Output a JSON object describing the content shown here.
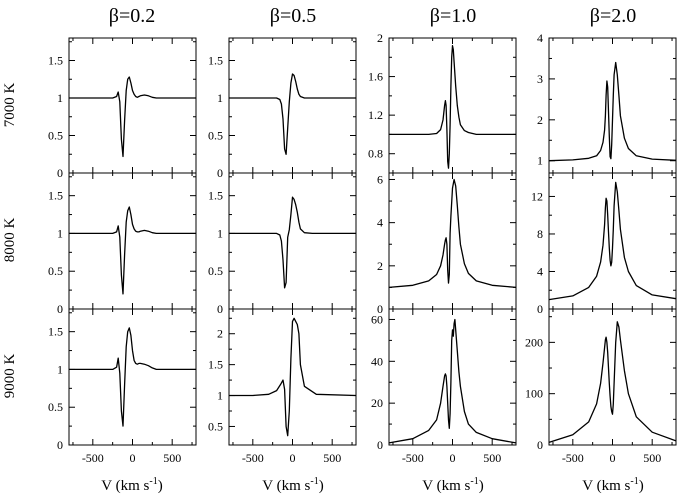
{
  "chart_data": {
    "type": "line",
    "title": "",
    "column_titles": [
      "β=0.2",
      "β=0.5",
      "β=1.0",
      "β=2.0"
    ],
    "row_labels": [
      "7000 K",
      "8000 K",
      "9000 K"
    ],
    "xlabel": {
      "main": "V (km s",
      "sup": "-1",
      "close": ")"
    },
    "xlim": [
      -800,
      800
    ],
    "xticks": [
      -500,
      0,
      500
    ],
    "ylabel": "",
    "grid": false,
    "legend": "none",
    "panels": [
      {
        "id": "7000K-b0.2",
        "ylim": [
          0,
          1.8
        ],
        "yticks": [
          0,
          0.5,
          1,
          1.5
        ],
        "x": [
          -800,
          -250,
          -200,
          -180,
          -160,
          -140,
          -120,
          -100,
          -80,
          -60,
          -40,
          -20,
          0,
          20,
          40,
          60,
          80,
          100,
          150,
          200,
          250,
          300,
          400,
          800
        ],
        "y": [
          1,
          1,
          1.02,
          1.08,
          0.95,
          0.45,
          0.22,
          0.7,
          1.1,
          1.25,
          1.28,
          1.2,
          1.1,
          1.05,
          1.02,
          1.01,
          1.02,
          1.03,
          1.04,
          1.03,
          1.01,
          1,
          1,
          1
        ]
      },
      {
        "id": "7000K-b0.5",
        "ylim": [
          0,
          1.8
        ],
        "yticks": [
          0,
          0.5,
          1,
          1.5
        ],
        "x": [
          -800,
          -200,
          -160,
          -140,
          -120,
          -100,
          -80,
          -60,
          -40,
          -20,
          0,
          20,
          40,
          60,
          80,
          100,
          150,
          250,
          800
        ],
        "y": [
          1,
          1,
          0.98,
          0.92,
          0.72,
          0.32,
          0.25,
          0.6,
          0.95,
          1.2,
          1.32,
          1.3,
          1.22,
          1.12,
          1.05,
          1.02,
          1,
          1,
          1
        ]
      },
      {
        "id": "7000K-b1.0",
        "ylim": [
          0.6,
          2.0
        ],
        "yticks": [
          0.8,
          1.2,
          1.6,
          2
        ],
        "x": [
          -800,
          -300,
          -200,
          -150,
          -120,
          -100,
          -90,
          -80,
          -70,
          -60,
          -50,
          -40,
          -30,
          -20,
          -10,
          0,
          10,
          20,
          40,
          60,
          80,
          100,
          150,
          200,
          300,
          800
        ],
        "y": [
          1,
          1,
          1.01,
          1.05,
          1.15,
          1.3,
          1.35,
          1.3,
          1.05,
          0.72,
          0.65,
          0.8,
          1.1,
          1.5,
          1.8,
          1.92,
          1.88,
          1.75,
          1.5,
          1.3,
          1.18,
          1.1,
          1.04,
          1.02,
          1,
          1
        ]
      },
      {
        "id": "7000K-b2.0",
        "ylim": [
          0.7,
          4.0
        ],
        "yticks": [
          1,
          2,
          3,
          4
        ],
        "x": [
          -800,
          -500,
          -300,
          -200,
          -150,
          -120,
          -100,
          -90,
          -80,
          -70,
          -60,
          -50,
          -40,
          -30,
          -20,
          -10,
          0,
          10,
          20,
          40,
          60,
          80,
          100,
          150,
          200,
          300,
          500,
          800
        ],
        "y": [
          1,
          1.02,
          1.06,
          1.12,
          1.25,
          1.45,
          1.75,
          2.1,
          2.6,
          2.95,
          2.8,
          2.2,
          1.6,
          1.1,
          1.05,
          1.4,
          2,
          2.6,
          3.1,
          3.4,
          3.1,
          2.6,
          2.1,
          1.55,
          1.3,
          1.12,
          1.04,
          1.01
        ]
      },
      {
        "id": "8000K-b0.2",
        "ylim": [
          0,
          1.8
        ],
        "yticks": [
          0,
          0.5,
          1,
          1.5
        ],
        "x": [
          -800,
          -250,
          -200,
          -180,
          -160,
          -140,
          -120,
          -100,
          -80,
          -60,
          -40,
          -20,
          0,
          20,
          40,
          60,
          80,
          100,
          150,
          200,
          250,
          300,
          400,
          800
        ],
        "y": [
          1,
          1,
          1.02,
          1.1,
          0.95,
          0.45,
          0.2,
          0.72,
          1.15,
          1.3,
          1.35,
          1.25,
          1.12,
          1.06,
          1.03,
          1.02,
          1.02,
          1.03,
          1.04,
          1.03,
          1.01,
          1,
          1,
          1
        ]
      },
      {
        "id": "8000K-b0.5",
        "ylim": [
          0,
          1.8
        ],
        "yticks": [
          0,
          0.5,
          1,
          1.5
        ],
        "x": [
          -800,
          -200,
          -160,
          -140,
          -120,
          -100,
          -80,
          -60,
          -40,
          -20,
          0,
          20,
          40,
          60,
          80,
          100,
          150,
          250,
          800
        ],
        "y": [
          1,
          1,
          0.98,
          0.9,
          0.65,
          0.28,
          0.35,
          0.95,
          1.05,
          1.25,
          1.48,
          1.45,
          1.38,
          1.28,
          1.15,
          1.06,
          1.01,
          1,
          1
        ]
      },
      {
        "id": "8000K-b1.0",
        "ylim": [
          0,
          6.3
        ],
        "yticks": [
          0,
          2,
          4,
          6
        ],
        "x": [
          -800,
          -500,
          -300,
          -200,
          -150,
          -120,
          -100,
          -90,
          -80,
          -70,
          -60,
          -50,
          -40,
          -30,
          -20,
          0,
          20,
          40,
          60,
          80,
          100,
          150,
          200,
          300,
          500,
          800
        ],
        "y": [
          1,
          1.1,
          1.3,
          1.6,
          2,
          2.5,
          3,
          3.2,
          3.3,
          3,
          1.8,
          1.2,
          1.6,
          3.5,
          4.3,
          5.6,
          6,
          5.7,
          4.8,
          3.8,
          3,
          2.1,
          1.65,
          1.3,
          1.1,
          1
        ]
      },
      {
        "id": "8000K-b2.0",
        "ylim": [
          0,
          14.5
        ],
        "yticks": [
          0,
          4,
          8,
          12
        ],
        "x": [
          -800,
          -500,
          -300,
          -200,
          -150,
          -120,
          -100,
          -90,
          -80,
          -70,
          -60,
          -50,
          -40,
          -30,
          -20,
          -10,
          0,
          10,
          20,
          40,
          60,
          80,
          100,
          150,
          200,
          300,
          500,
          800
        ],
        "y": [
          1,
          1.4,
          2.3,
          3.5,
          5,
          6.8,
          9,
          10.8,
          11.8,
          11.5,
          10,
          8.2,
          6.5,
          5.2,
          4.6,
          5,
          6.5,
          8.5,
          11,
          13.5,
          12.5,
          10.5,
          8.5,
          5.5,
          4,
          2.5,
          1.5,
          1.1
        ]
      },
      {
        "id": "9000K-b0.2",
        "ylim": [
          0,
          1.8
        ],
        "yticks": [
          0,
          0.5,
          1,
          1.5
        ],
        "x": [
          -800,
          -250,
          -200,
          -180,
          -160,
          -140,
          -120,
          -100,
          -80,
          -60,
          -40,
          -20,
          0,
          20,
          40,
          60,
          80,
          100,
          150,
          200,
          250,
          300,
          400,
          800
        ],
        "y": [
          1,
          1,
          1.03,
          1.15,
          0.95,
          0.45,
          0.25,
          0.8,
          1.3,
          1.5,
          1.55,
          1.45,
          1.25,
          1.12,
          1.08,
          1.07,
          1.08,
          1.08,
          1.07,
          1.05,
          1.02,
          1,
          1,
          1
        ]
      },
      {
        "id": "9000K-b0.5",
        "ylim": [
          0.2,
          2.4
        ],
        "yticks": [
          0.5,
          1,
          1.5,
          2
        ],
        "x": [
          -800,
          -500,
          -300,
          -200,
          -150,
          -120,
          -100,
          -80,
          -60,
          -40,
          -20,
          0,
          20,
          40,
          60,
          80,
          100,
          150,
          300,
          800
        ],
        "y": [
          1,
          1,
          1.02,
          1.08,
          1.18,
          1.25,
          1.1,
          0.5,
          0.35,
          0.75,
          1.6,
          2.2,
          2.25,
          2.2,
          2.15,
          2,
          1.5,
          1.15,
          1.02,
          1
        ]
      },
      {
        "id": "9000K-b1.0",
        "ylim": [
          0,
          65
        ],
        "yticks": [
          0,
          20,
          40,
          60
        ],
        "x": [
          -800,
          -500,
          -300,
          -200,
          -150,
          -120,
          -100,
          -90,
          -80,
          -70,
          -60,
          -50,
          -40,
          -30,
          -20,
          -10,
          0,
          10,
          20,
          30,
          40,
          60,
          80,
          100,
          150,
          200,
          300,
          500,
          800
        ],
        "y": [
          1,
          3,
          7,
          12,
          20,
          28,
          33,
          34,
          33,
          28,
          20,
          12,
          8,
          15,
          30,
          50,
          55,
          52,
          58,
          60,
          55,
          45,
          35,
          28,
          16,
          10,
          6,
          3,
          1
        ]
      },
      {
        "id": "9000K-b2.0",
        "ylim": [
          0,
          265
        ],
        "yticks": [
          0,
          100,
          200
        ],
        "x": [
          -800,
          -500,
          -300,
          -200,
          -150,
          -120,
          -100,
          -90,
          -80,
          -70,
          -60,
          -50,
          -40,
          -30,
          -20,
          -10,
          0,
          10,
          20,
          40,
          60,
          80,
          100,
          150,
          200,
          300,
          500,
          800
        ],
        "y": [
          5,
          20,
          45,
          80,
          120,
          160,
          190,
          205,
          210,
          200,
          180,
          150,
          120,
          95,
          75,
          65,
          60,
          80,
          120,
          200,
          240,
          230,
          205,
          145,
          100,
          55,
          25,
          8
        ]
      }
    ]
  }
}
